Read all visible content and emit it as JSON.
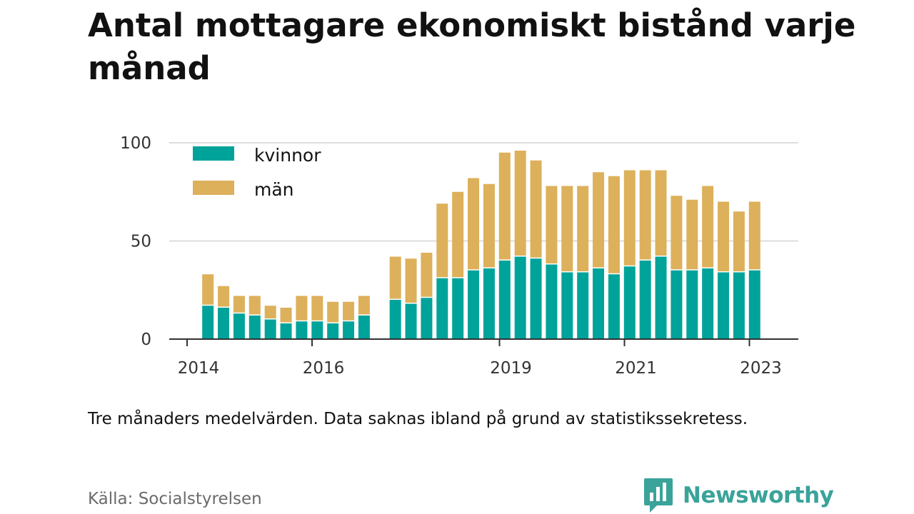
{
  "title": "Antal mottagare ekonomiskt bistånd varje månad",
  "note": "Tre månaders medelvärden. Data saknas ibland på grund av statistikssekretess.",
  "source": "Källa: Socialstyrelsen",
  "brand": {
    "name": "Newsworthy",
    "icon": "newsworthy-logo-icon"
  },
  "colors": {
    "kvinnor": "#00a39a",
    "man": "#ddb05b",
    "grid": "#dddddd",
    "axis": "#333333"
  },
  "chart_data": {
    "type": "bar",
    "stacked": true,
    "x_type": "date",
    "x_ticks": [
      "2014",
      "2016",
      "2019",
      "2021",
      "2023"
    ],
    "ylim": [
      0,
      100
    ],
    "y_ticks": [
      0,
      50,
      100
    ],
    "grid": true,
    "legend_position": "top-left",
    "x": [
      "2014-05",
      "2014-08",
      "2014-11",
      "2015-02",
      "2015-05",
      "2015-08",
      "2015-11",
      "2016-02",
      "2016-05",
      "2016-08",
      "2016-11",
      "2017-05",
      "2017-08",
      "2017-11",
      "2018-02",
      "2018-05",
      "2018-08",
      "2018-11",
      "2019-02",
      "2019-05",
      "2019-08",
      "2019-11",
      "2020-02",
      "2020-05",
      "2020-08",
      "2020-11",
      "2021-02",
      "2021-05",
      "2021-08",
      "2021-11",
      "2022-02",
      "2022-05",
      "2022-08",
      "2022-11",
      "2023-02"
    ],
    "series": [
      {
        "name": "kvinnor",
        "values": [
          17,
          16,
          13,
          12,
          10,
          8,
          9,
          9,
          8,
          9,
          12,
          20,
          18,
          21,
          31,
          31,
          35,
          36,
          40,
          42,
          41,
          38,
          34,
          34,
          36,
          33,
          37,
          40,
          42,
          35,
          35,
          36,
          34,
          34,
          35
        ]
      },
      {
        "name": "män",
        "values": [
          16,
          11,
          9,
          10,
          7,
          8,
          13,
          13,
          11,
          10,
          10,
          22,
          23,
          23,
          38,
          44,
          47,
          43,
          55,
          54,
          50,
          40,
          44,
          44,
          49,
          50,
          49,
          46,
          44,
          38,
          36,
          42,
          36,
          31,
          35
        ]
      }
    ]
  }
}
